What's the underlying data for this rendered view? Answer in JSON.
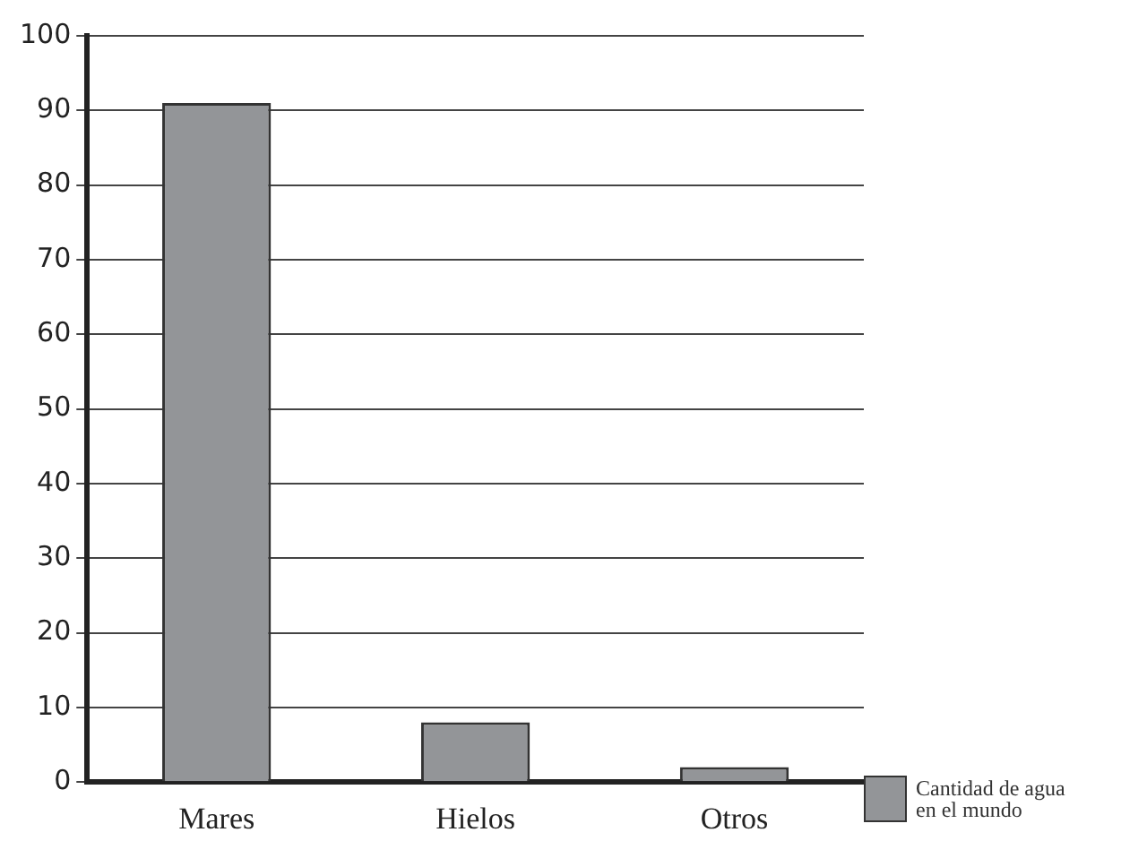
{
  "chart_data": {
    "type": "bar",
    "categories": [
      "Mares",
      "Hielos",
      "Otros"
    ],
    "series": [
      {
        "name": "Cantidad de agua en el mundo",
        "color": "#939598",
        "values": [
          91,
          8,
          2
        ]
      }
    ],
    "ylim": [
      0,
      100
    ],
    "yticks": [
      0,
      10,
      20,
      30,
      40,
      50,
      60,
      70,
      80,
      90,
      100
    ],
    "grid": "y",
    "legend": "bottom right"
  }
}
